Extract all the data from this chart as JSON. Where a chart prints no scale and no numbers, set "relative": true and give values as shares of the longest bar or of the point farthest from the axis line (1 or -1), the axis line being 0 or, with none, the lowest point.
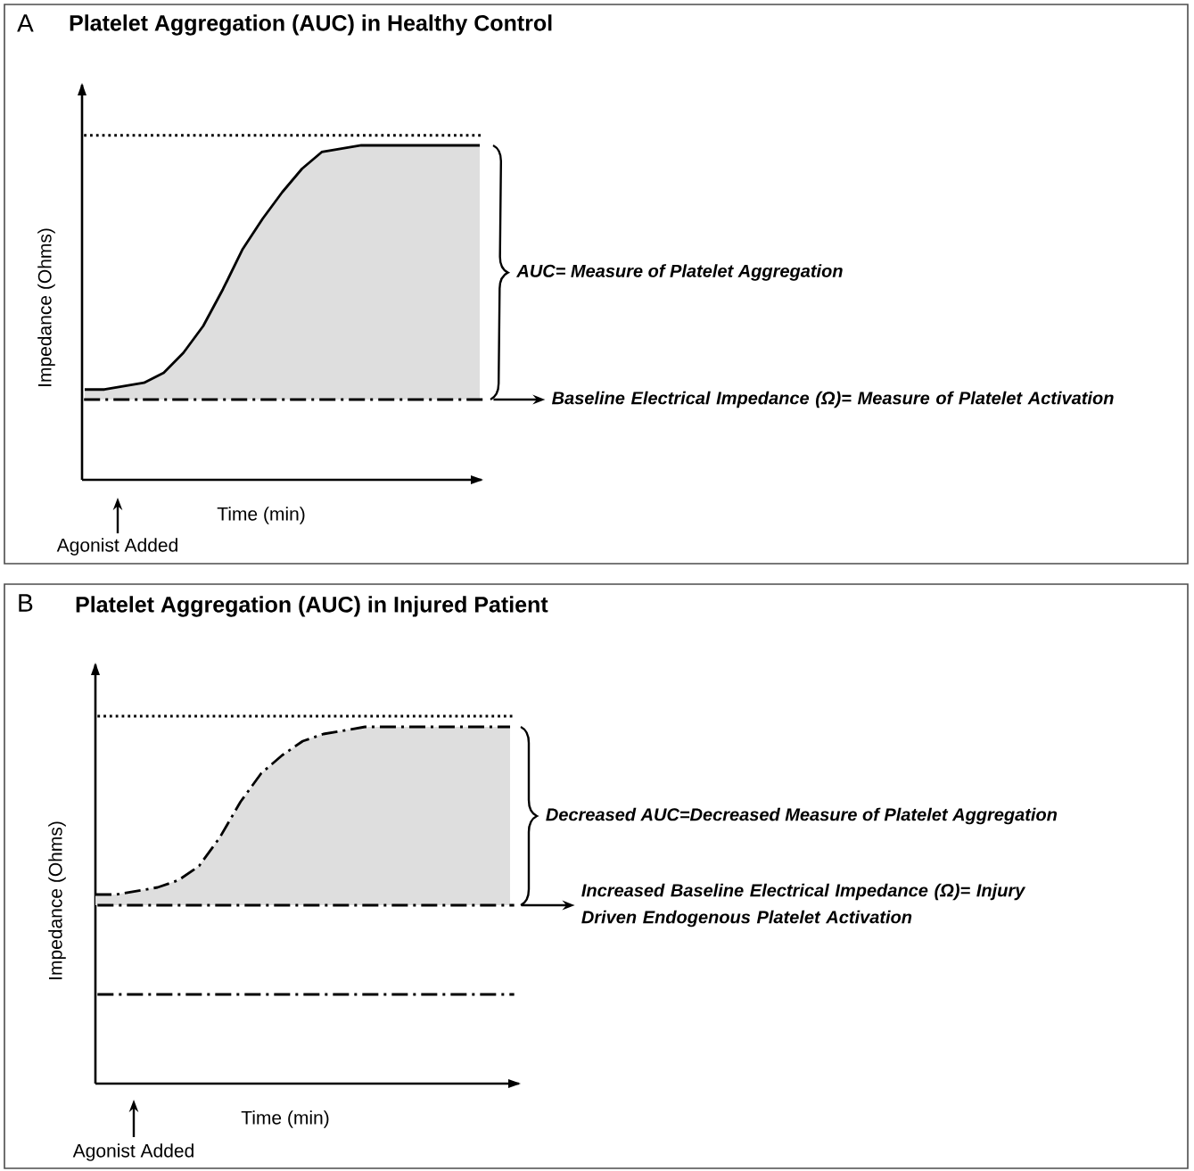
{
  "chart_data": [
    {
      "type": "line",
      "title": "Platelet Aggregation (AUC) in Healthy Control",
      "xlabel": "Time (min)",
      "ylabel": "Impedance (Ohms)",
      "relative": true,
      "marker": "none",
      "categories": [
        null,
        null,
        null,
        null,
        null,
        null,
        null,
        null,
        null,
        null,
        null,
        null,
        null,
        null,
        null,
        null,
        null,
        null,
        null,
        null,
        null
      ],
      "series": [
        {
          "color": "#000000",
          "line_style": "solid",
          "values": [
            0.27,
            0.27,
            0.28,
            0.29,
            0.32,
            0.38,
            0.46,
            0.57,
            0.69,
            0.78,
            0.86,
            0.93,
            0.98,
            0.99,
            1.0,
            1.0,
            1.0,
            1.0,
            1.0,
            1.0,
            1.0
          ],
          "lower": [
            0.24,
            0.24,
            0.24,
            0.24,
            0.24,
            0.24,
            0.24,
            0.24,
            0.24,
            0.24,
            0.24,
            0.24,
            0.24,
            0.24,
            0.24,
            0.24,
            0.24,
            0.24,
            0.24,
            0.24,
            0.24
          ],
          "upper": [
            0.27,
            0.27,
            0.28,
            0.29,
            0.32,
            0.38,
            0.46,
            0.57,
            0.69,
            0.78,
            0.86,
            0.93,
            0.98,
            0.99,
            1.0,
            1.0,
            1.0,
            1.0,
            1.0,
            1.0,
            1.0
          ]
        }
      ],
      "ref_lines": [
        {
          "axis": "y",
          "value": 1.03,
          "color": "#000000",
          "line_style": "dotted"
        },
        {
          "axis": "y",
          "value": 0.24,
          "color": "#000000",
          "line_style": "dashdot",
          "label": "Baseline Electrical Impedance (Ω)= Measure of Platelet Activation"
        }
      ],
      "annotations": [
        "A",
        "AUC= Measure of Platelet Aggregation",
        "Agonist Added"
      ]
    },
    {
      "type": "line",
      "title": "Platelet Aggregation (AUC) in Injured Patient",
      "xlabel": "Time (min)",
      "ylabel": "Impedance (Ohms)",
      "relative": true,
      "marker": "none",
      "categories": [
        null,
        null,
        null,
        null,
        null,
        null,
        null,
        null,
        null,
        null,
        null,
        null,
        null,
        null,
        null,
        null,
        null,
        null,
        null,
        null,
        null
      ],
      "series": [
        {
          "color": "#000000",
          "line_style": "dashdot",
          "values": [
            0.53,
            0.53,
            0.54,
            0.55,
            0.57,
            0.61,
            0.69,
            0.79,
            0.87,
            0.92,
            0.96,
            0.98,
            0.99,
            1.0,
            1.0,
            1.0,
            1.0,
            1.0,
            1.0,
            1.0,
            1.0
          ],
          "lower": [
            0.5,
            0.5,
            0.5,
            0.5,
            0.5,
            0.5,
            0.5,
            0.5,
            0.5,
            0.5,
            0.5,
            0.5,
            0.5,
            0.5,
            0.5,
            0.5,
            0.5,
            0.5,
            0.5,
            0.5,
            0.5
          ],
          "upper": [
            0.53,
            0.53,
            0.54,
            0.55,
            0.57,
            0.61,
            0.69,
            0.79,
            0.87,
            0.92,
            0.96,
            0.98,
            0.99,
            1.0,
            1.0,
            1.0,
            1.0,
            1.0,
            1.0,
            1.0,
            1.0
          ]
        }
      ],
      "ref_lines": [
        {
          "axis": "y",
          "value": 1.03,
          "color": "#000000",
          "line_style": "dotted"
        },
        {
          "axis": "y",
          "value": 0.5,
          "color": "#000000",
          "line_style": "dashdot",
          "label": "Increased Baseline Electrical Impedance (Ω)= Injury Driven Endogenous Platelet Activation"
        },
        {
          "axis": "y",
          "value": 0.25,
          "color": "#000000",
          "line_style": "dashdot"
        }
      ],
      "annotations": [
        "B",
        "Decreased AUC=Decreased Measure of Platelet Aggregation",
        "Agonist Added"
      ]
    }
  ]
}
